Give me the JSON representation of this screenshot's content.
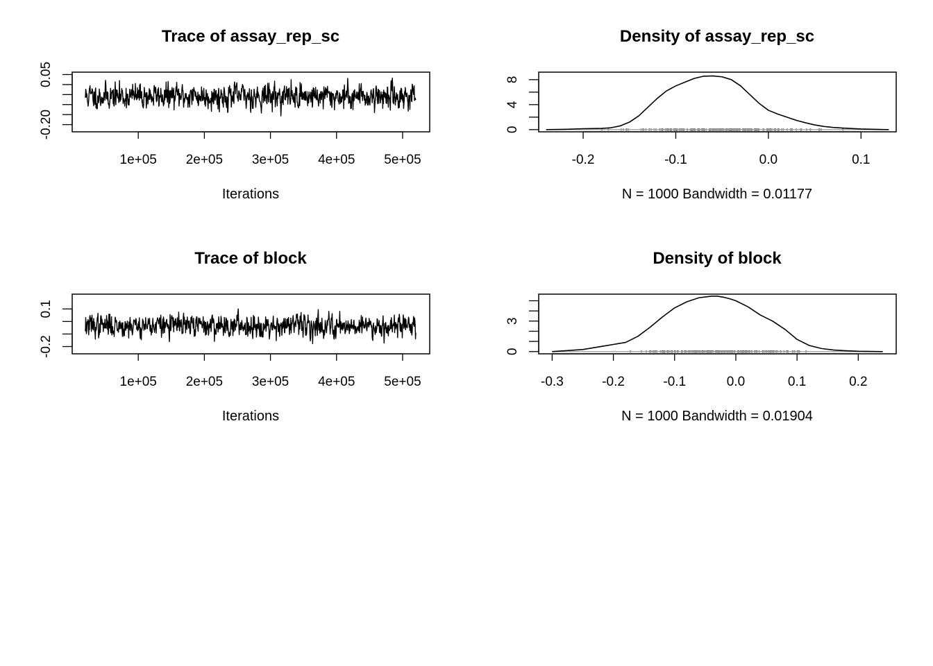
{
  "chart_data": [
    {
      "id": "trace1",
      "type": "line",
      "title": "Trace of assay_rep_sc",
      "xlabel": "Iterations",
      "ylabel": "",
      "xlim": [
        0,
        541000
      ],
      "ylim": [
        -0.236,
        0.062
      ],
      "x_range": [
        20000,
        520000
      ],
      "n": 1000,
      "seed": 11,
      "center": -0.058,
      "spread": 0.045,
      "y_min": -0.23,
      "y_max": 0.052,
      "xticks": [
        100000,
        200000,
        300000,
        400000,
        500000
      ],
      "xtick_labels": [
        "1e+05",
        "2e+05",
        "3e+05",
        "4e+05",
        "5e+05"
      ],
      "yticks": [
        0.05,
        0.0,
        -0.05,
        -0.1,
        -0.15,
        -0.2
      ],
      "ytick_labels": [
        "0.05",
        "",
        "",
        "",
        "",
        "-0.20"
      ],
      "grid": false
    },
    {
      "id": "density1",
      "type": "area",
      "title": "Density of assay_rep_sc",
      "xlabel": "N = 1000   Bandwidth = 0.01177",
      "ylabel": "",
      "xlim": [
        -0.248,
        0.138
      ],
      "ylim": [
        -0.35,
        9.2
      ],
      "x": [
        -0.24,
        -0.22,
        -0.2,
        -0.18,
        -0.17,
        -0.16,
        -0.15,
        -0.14,
        -0.13,
        -0.12,
        -0.11,
        -0.1,
        -0.09,
        -0.08,
        -0.07,
        -0.06,
        -0.05,
        -0.04,
        -0.03,
        -0.02,
        -0.01,
        0.0,
        0.01,
        0.02,
        0.03,
        0.04,
        0.05,
        0.06,
        0.07,
        0.08,
        0.1,
        0.13
      ],
      "y": [
        0.0,
        0.05,
        0.15,
        0.2,
        0.3,
        0.6,
        1.2,
        2.2,
        3.6,
        5.0,
        6.2,
        7.0,
        7.6,
        8.2,
        8.55,
        8.6,
        8.45,
        8.0,
        7.0,
        5.6,
        4.2,
        3.1,
        2.5,
        2.0,
        1.5,
        1.1,
        0.75,
        0.5,
        0.35,
        0.25,
        0.1,
        0.0
      ],
      "rug_center": -0.058,
      "rug_spread": 0.045,
      "rug_min": -0.23,
      "rug_max": 0.09,
      "seed": 23,
      "xticks": [
        -0.2,
        -0.1,
        0.0,
        0.1
      ],
      "xtick_labels": [
        "-0.2",
        "-0.1",
        "0.0",
        "0.1"
      ],
      "yticks": [
        0,
        2,
        4,
        6,
        8
      ],
      "ytick_labels": [
        "0",
        "",
        "4",
        "",
        "8"
      ],
      "grid": false
    },
    {
      "id": "trace2",
      "type": "line",
      "title": "Trace of block",
      "xlabel": "Iterations",
      "ylabel": "",
      "xlim": [
        0,
        541000
      ],
      "ylim": [
        -0.258,
        0.218
      ],
      "x_range": [
        20000,
        520000
      ],
      "n": 1000,
      "seed": 37,
      "center": -0.032,
      "spread": 0.065,
      "y_min": -0.24,
      "y_max": 0.205,
      "xticks": [
        100000,
        200000,
        300000,
        400000,
        500000
      ],
      "xtick_labels": [
        "1e+05",
        "2e+05",
        "3e+05",
        "4e+05",
        "5e+05"
      ],
      "yticks": [
        0.1,
        0.0,
        -0.1,
        -0.2
      ],
      "ytick_labels": [
        "0.1",
        "",
        "",
        "-0.2"
      ],
      "grid": false
    },
    {
      "id": "density2",
      "type": "area",
      "title": "Density of block",
      "xlabel": "N = 1000   Bandwidth = 0.01904",
      "ylabel": "",
      "xlim": [
        -0.322,
        0.262
      ],
      "ylim": [
        -0.22,
        5.65
      ],
      "x": [
        -0.3,
        -0.25,
        -0.22,
        -0.2,
        -0.18,
        -0.16,
        -0.14,
        -0.12,
        -0.1,
        -0.08,
        -0.06,
        -0.04,
        -0.03,
        -0.02,
        -0.01,
        0.0,
        0.02,
        0.04,
        0.06,
        0.08,
        0.1,
        0.12,
        0.14,
        0.16,
        0.18,
        0.2,
        0.24
      ],
      "y": [
        0.0,
        0.2,
        0.5,
        0.7,
        0.9,
        1.5,
        2.4,
        3.4,
        4.3,
        4.9,
        5.3,
        5.45,
        5.45,
        5.35,
        5.2,
        5.0,
        4.4,
        3.6,
        3.0,
        2.2,
        1.2,
        0.6,
        0.3,
        0.15,
        0.08,
        0.03,
        0.0
      ],
      "rug_center": -0.032,
      "rug_spread": 0.068,
      "rug_min": -0.25,
      "rug_max": 0.2,
      "seed": 51,
      "xticks": [
        -0.3,
        -0.2,
        -0.1,
        0.0,
        0.1,
        0.2
      ],
      "xtick_labels": [
        "-0.3",
        "-0.2",
        "-0.1",
        "0.0",
        "0.1",
        "0.2"
      ],
      "yticks": [
        0,
        1,
        2,
        3,
        4,
        5
      ],
      "ytick_labels": [
        "0",
        "",
        "",
        "3",
        "",
        ""
      ],
      "grid": false
    }
  ]
}
